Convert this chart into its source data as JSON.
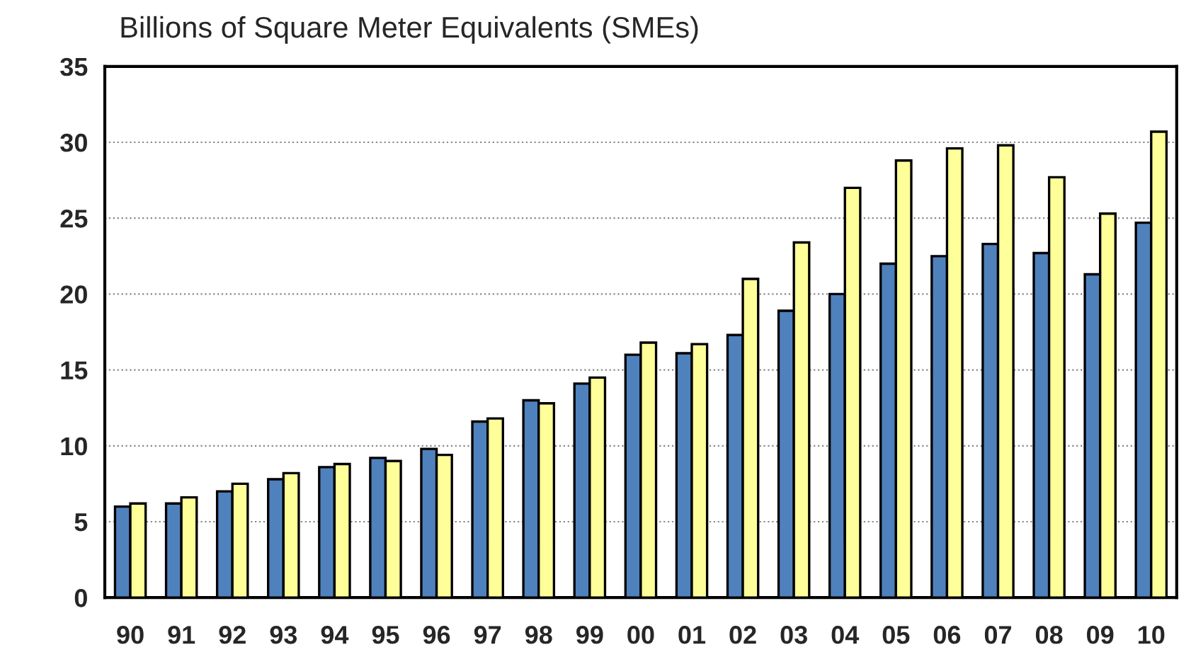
{
  "chart_data": {
    "type": "bar",
    "title": "Billions of Square Meter Equivalents (SMEs)",
    "categories": [
      "90",
      "91",
      "92",
      "93",
      "94",
      "95",
      "96",
      "97",
      "98",
      "99",
      "00",
      "01",
      "02",
      "03",
      "04",
      "05",
      "06",
      "07",
      "08",
      "09",
      "10"
    ],
    "series": [
      {
        "color": "#4f81bd",
        "values": [
          6.0,
          6.2,
          7.0,
          7.8,
          8.6,
          9.2,
          9.8,
          11.6,
          13.0,
          14.1,
          16.0,
          16.1,
          17.3,
          18.9,
          20.0,
          22.0,
          22.5,
          23.3,
          22.7,
          21.3,
          24.7
        ]
      },
      {
        "color": "#ffff99",
        "values": [
          6.2,
          6.6,
          7.5,
          8.2,
          8.8,
          9.0,
          9.4,
          11.8,
          12.8,
          14.5,
          16.8,
          16.7,
          21.0,
          23.4,
          27.0,
          28.8,
          29.6,
          29.8,
          27.7,
          25.3,
          30.7
        ]
      }
    ],
    "ylim": [
      0,
      35
    ],
    "yticks": [
      0,
      5,
      10,
      15,
      20,
      25,
      30,
      35
    ],
    "grid": "y"
  }
}
